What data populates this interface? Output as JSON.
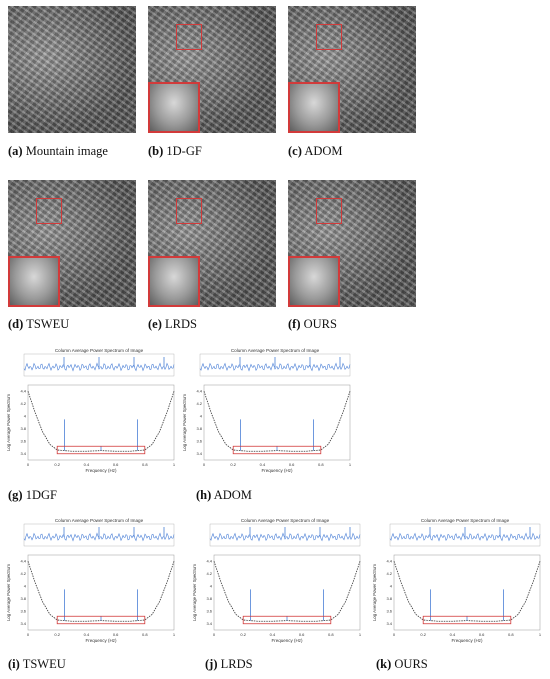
{
  "image_panels": [
    {
      "label": "(a)",
      "text": "Mountain image",
      "inset": false
    },
    {
      "label": "(b)",
      "text": "1D-GF",
      "inset": true
    },
    {
      "label": "(c)",
      "text": "ADOM",
      "inset": true
    },
    {
      "label": "(d)",
      "text": "TSWEU",
      "inset": true
    },
    {
      "label": "(e)",
      "text": "LRDS",
      "inset": true
    },
    {
      "label": "(f)",
      "text": "OURS",
      "inset": true
    }
  ],
  "plot_panels": [
    {
      "label": "(g)",
      "text": "1DGF"
    },
    {
      "label": "(h)",
      "text": "ADOM"
    },
    {
      "label": "(i)",
      "text": "TSWEU"
    },
    {
      "label": "(j)",
      "text": "LRDS"
    },
    {
      "label": "(k)",
      "text": "OURS"
    }
  ],
  "plot_text": {
    "top_title": "Column Average Power Spectrum of Image",
    "xlabel": "Frequency (Hz)",
    "ylabel": "Log Average Power Spectrum",
    "xticks": [
      "0",
      "0.2",
      "0.4",
      "0.6",
      "0.8",
      "1"
    ],
    "yticks": [
      "3.4",
      "3.6",
      "3.8",
      "4",
      "4.2",
      "4.4"
    ]
  },
  "chart_data": {
    "type": "line",
    "title": "Column Average Power Spectrum of Image",
    "xlabel": "Frequency (Hz)",
    "ylabel": "Log Average Power Spectrum",
    "xlim": [
      0,
      1
    ],
    "ylim": [
      3.3,
      4.5
    ],
    "x": [
      0,
      0.05,
      0.1,
      0.15,
      0.2,
      0.25,
      0.3,
      0.4,
      0.5,
      0.6,
      0.7,
      0.75,
      0.8,
      0.85,
      0.9,
      0.95,
      1
    ],
    "series": [
      {
        "values": [
          4.4,
          4.05,
          3.75,
          3.55,
          3.46,
          3.45,
          3.44,
          3.44,
          3.45,
          3.44,
          3.44,
          3.45,
          3.46,
          3.55,
          3.75,
          4.05,
          4.4
        ]
      }
    ],
    "spikes": [
      {
        "x": 0.25,
        "y": 3.95
      },
      {
        "x": 0.5,
        "y": 3.52
      },
      {
        "x": 0.75,
        "y": 3.95
      }
    ],
    "highlight_box": {
      "x": [
        0.2,
        0.8
      ],
      "y": [
        3.4,
        3.52
      ]
    }
  },
  "colors": {
    "curve": "#333333",
    "spike": "#4a7fd6",
    "box": "#d23a3a",
    "fit": "#e08a3a"
  }
}
